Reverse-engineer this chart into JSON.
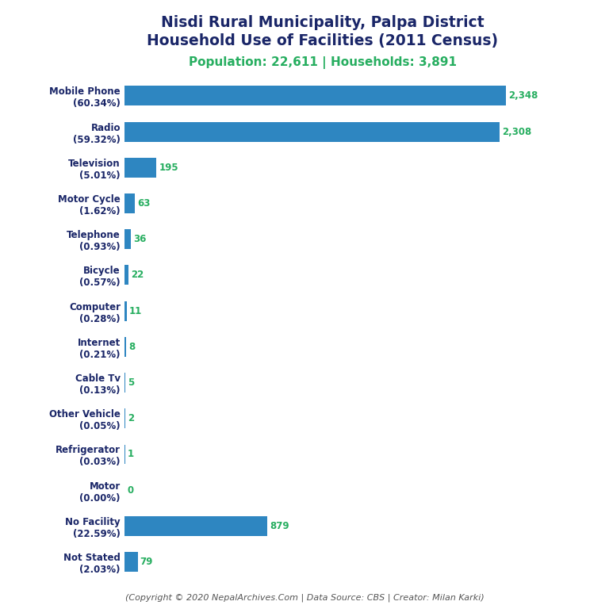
{
  "title_line1": "Nisdi Rural Municipality, Palpa District",
  "title_line2": "Household Use of Facilities (2011 Census)",
  "subtitle": "Population: 22,611 | Households: 3,891",
  "footer": "(Copyright © 2020 NepalArchives.Com | Data Source: CBS | Creator: Milan Karki)",
  "categories": [
    "Not Stated\n(2.03%)",
    "No Facility\n(22.59%)",
    "Motor\n(0.00%)",
    "Refrigerator\n(0.03%)",
    "Other Vehicle\n(0.05%)",
    "Cable Tv\n(0.13%)",
    "Internet\n(0.21%)",
    "Computer\n(0.28%)",
    "Bicycle\n(0.57%)",
    "Telephone\n(0.93%)",
    "Motor Cycle\n(1.62%)",
    "Television\n(5.01%)",
    "Radio\n(59.32%)",
    "Mobile Phone\n(60.34%)"
  ],
  "values": [
    79,
    879,
    0,
    1,
    2,
    5,
    8,
    11,
    22,
    36,
    63,
    195,
    2308,
    2348
  ],
  "bar_color": "#2E86C1",
  "value_color": "#27AE60",
  "title_color": "#1A2668",
  "subtitle_color": "#27AE60",
  "footer_color": "#555555",
  "background_color": "#FFFFFF",
  "xlim": [
    0,
    2700
  ]
}
